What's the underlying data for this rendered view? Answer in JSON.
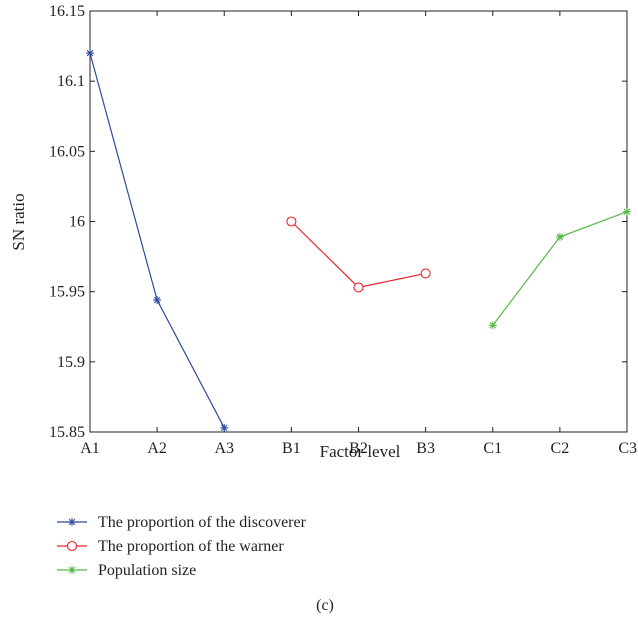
{
  "chart_data": {
    "type": "line",
    "categories": [
      "A1",
      "A2",
      "A3",
      "B1",
      "B2",
      "B3",
      "C1",
      "C2",
      "C3"
    ],
    "xlabel": "Factor level",
    "ylabel": "SN ratio",
    "ylim": [
      15.85,
      16.15
    ],
    "yticks": [
      15.85,
      15.9,
      15.95,
      16,
      16.05,
      16.1,
      16.15
    ],
    "ytick_labels": [
      "15.85",
      "15.9",
      "15.95",
      "16",
      "16.05",
      "16.1",
      "16.15"
    ],
    "grid": false,
    "legend_position": "bottom-left",
    "series": [
      {
        "name": "The proportion of the discoverer",
        "marker": "asterisk",
        "color": "#2e4a9e",
        "x": [
          "A1",
          "A2",
          "A3"
        ],
        "values": [
          16.12,
          15.944,
          15.853
        ]
      },
      {
        "name": "The proportion of the warner",
        "marker": "circle",
        "color": "#e8262b",
        "x": [
          "B1",
          "B2",
          "B3"
        ],
        "values": [
          16.0,
          15.953,
          15.963
        ]
      },
      {
        "name": "Population size",
        "marker": "asterisk",
        "color": "#55b848",
        "x": [
          "C1",
          "C2",
          "C3"
        ],
        "values": [
          15.926,
          15.989,
          16.007
        ]
      }
    ]
  },
  "caption": "(c)"
}
